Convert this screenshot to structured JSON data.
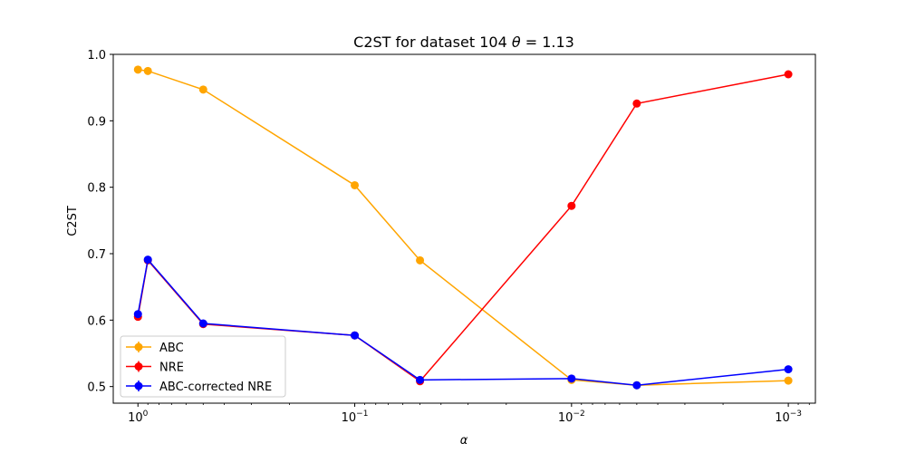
{
  "chart_data": {
    "type": "line",
    "title_prefix": "C2ST for dataset 104 ",
    "title_theta": "θ",
    "title_suffix": " =  1.13",
    "xlabel": "α",
    "ylabel": "C2ST",
    "x_scale": "log",
    "x_reversed": true,
    "xlim": [
      1.3,
      0.00075
    ],
    "ylim": [
      0.475,
      1.0
    ],
    "x_ticks": [
      {
        "value": 1,
        "base": "10",
        "exp": "0"
      },
      {
        "value": 0.1,
        "base": "10",
        "exp": "−1"
      },
      {
        "value": 0.01,
        "base": "10",
        "exp": "−2"
      },
      {
        "value": 0.001,
        "base": "10",
        "exp": "−3"
      }
    ],
    "y_ticks": [
      {
        "value": 0.5,
        "label": "0.5"
      },
      {
        "value": 0.6,
        "label": "0.6"
      },
      {
        "value": 0.7,
        "label": "0.7"
      },
      {
        "value": 0.8,
        "label": "0.8"
      },
      {
        "value": 0.9,
        "label": "0.9"
      },
      {
        "value": 1.0,
        "label": "1.0"
      }
    ],
    "grid": false,
    "legend_position": "lower-left",
    "series": [
      {
        "name": "ABC",
        "color": "#ffa500",
        "x": [
          1,
          0.9,
          0.5,
          0.1,
          0.05,
          0.01,
          0.005,
          0.001
        ],
        "y": [
          0.977,
          0.975,
          0.947,
          0.803,
          0.69,
          0.51,
          0.502,
          0.509
        ]
      },
      {
        "name": "NRE",
        "color": "#ff0000",
        "x": [
          1,
          0.9,
          0.5,
          0.1,
          0.05,
          0.01,
          0.005,
          0.001
        ],
        "y": [
          0.605,
          0.69,
          0.594,
          0.577,
          0.508,
          0.772,
          0.926,
          0.97
        ]
      },
      {
        "name": "ABC-corrected NRE",
        "color": "#0000ff",
        "x": [
          1,
          0.9,
          0.5,
          0.1,
          0.05,
          0.01,
          0.005,
          0.001
        ],
        "y": [
          0.609,
          0.691,
          0.595,
          0.577,
          0.51,
          0.512,
          0.502,
          0.526
        ]
      }
    ]
  }
}
